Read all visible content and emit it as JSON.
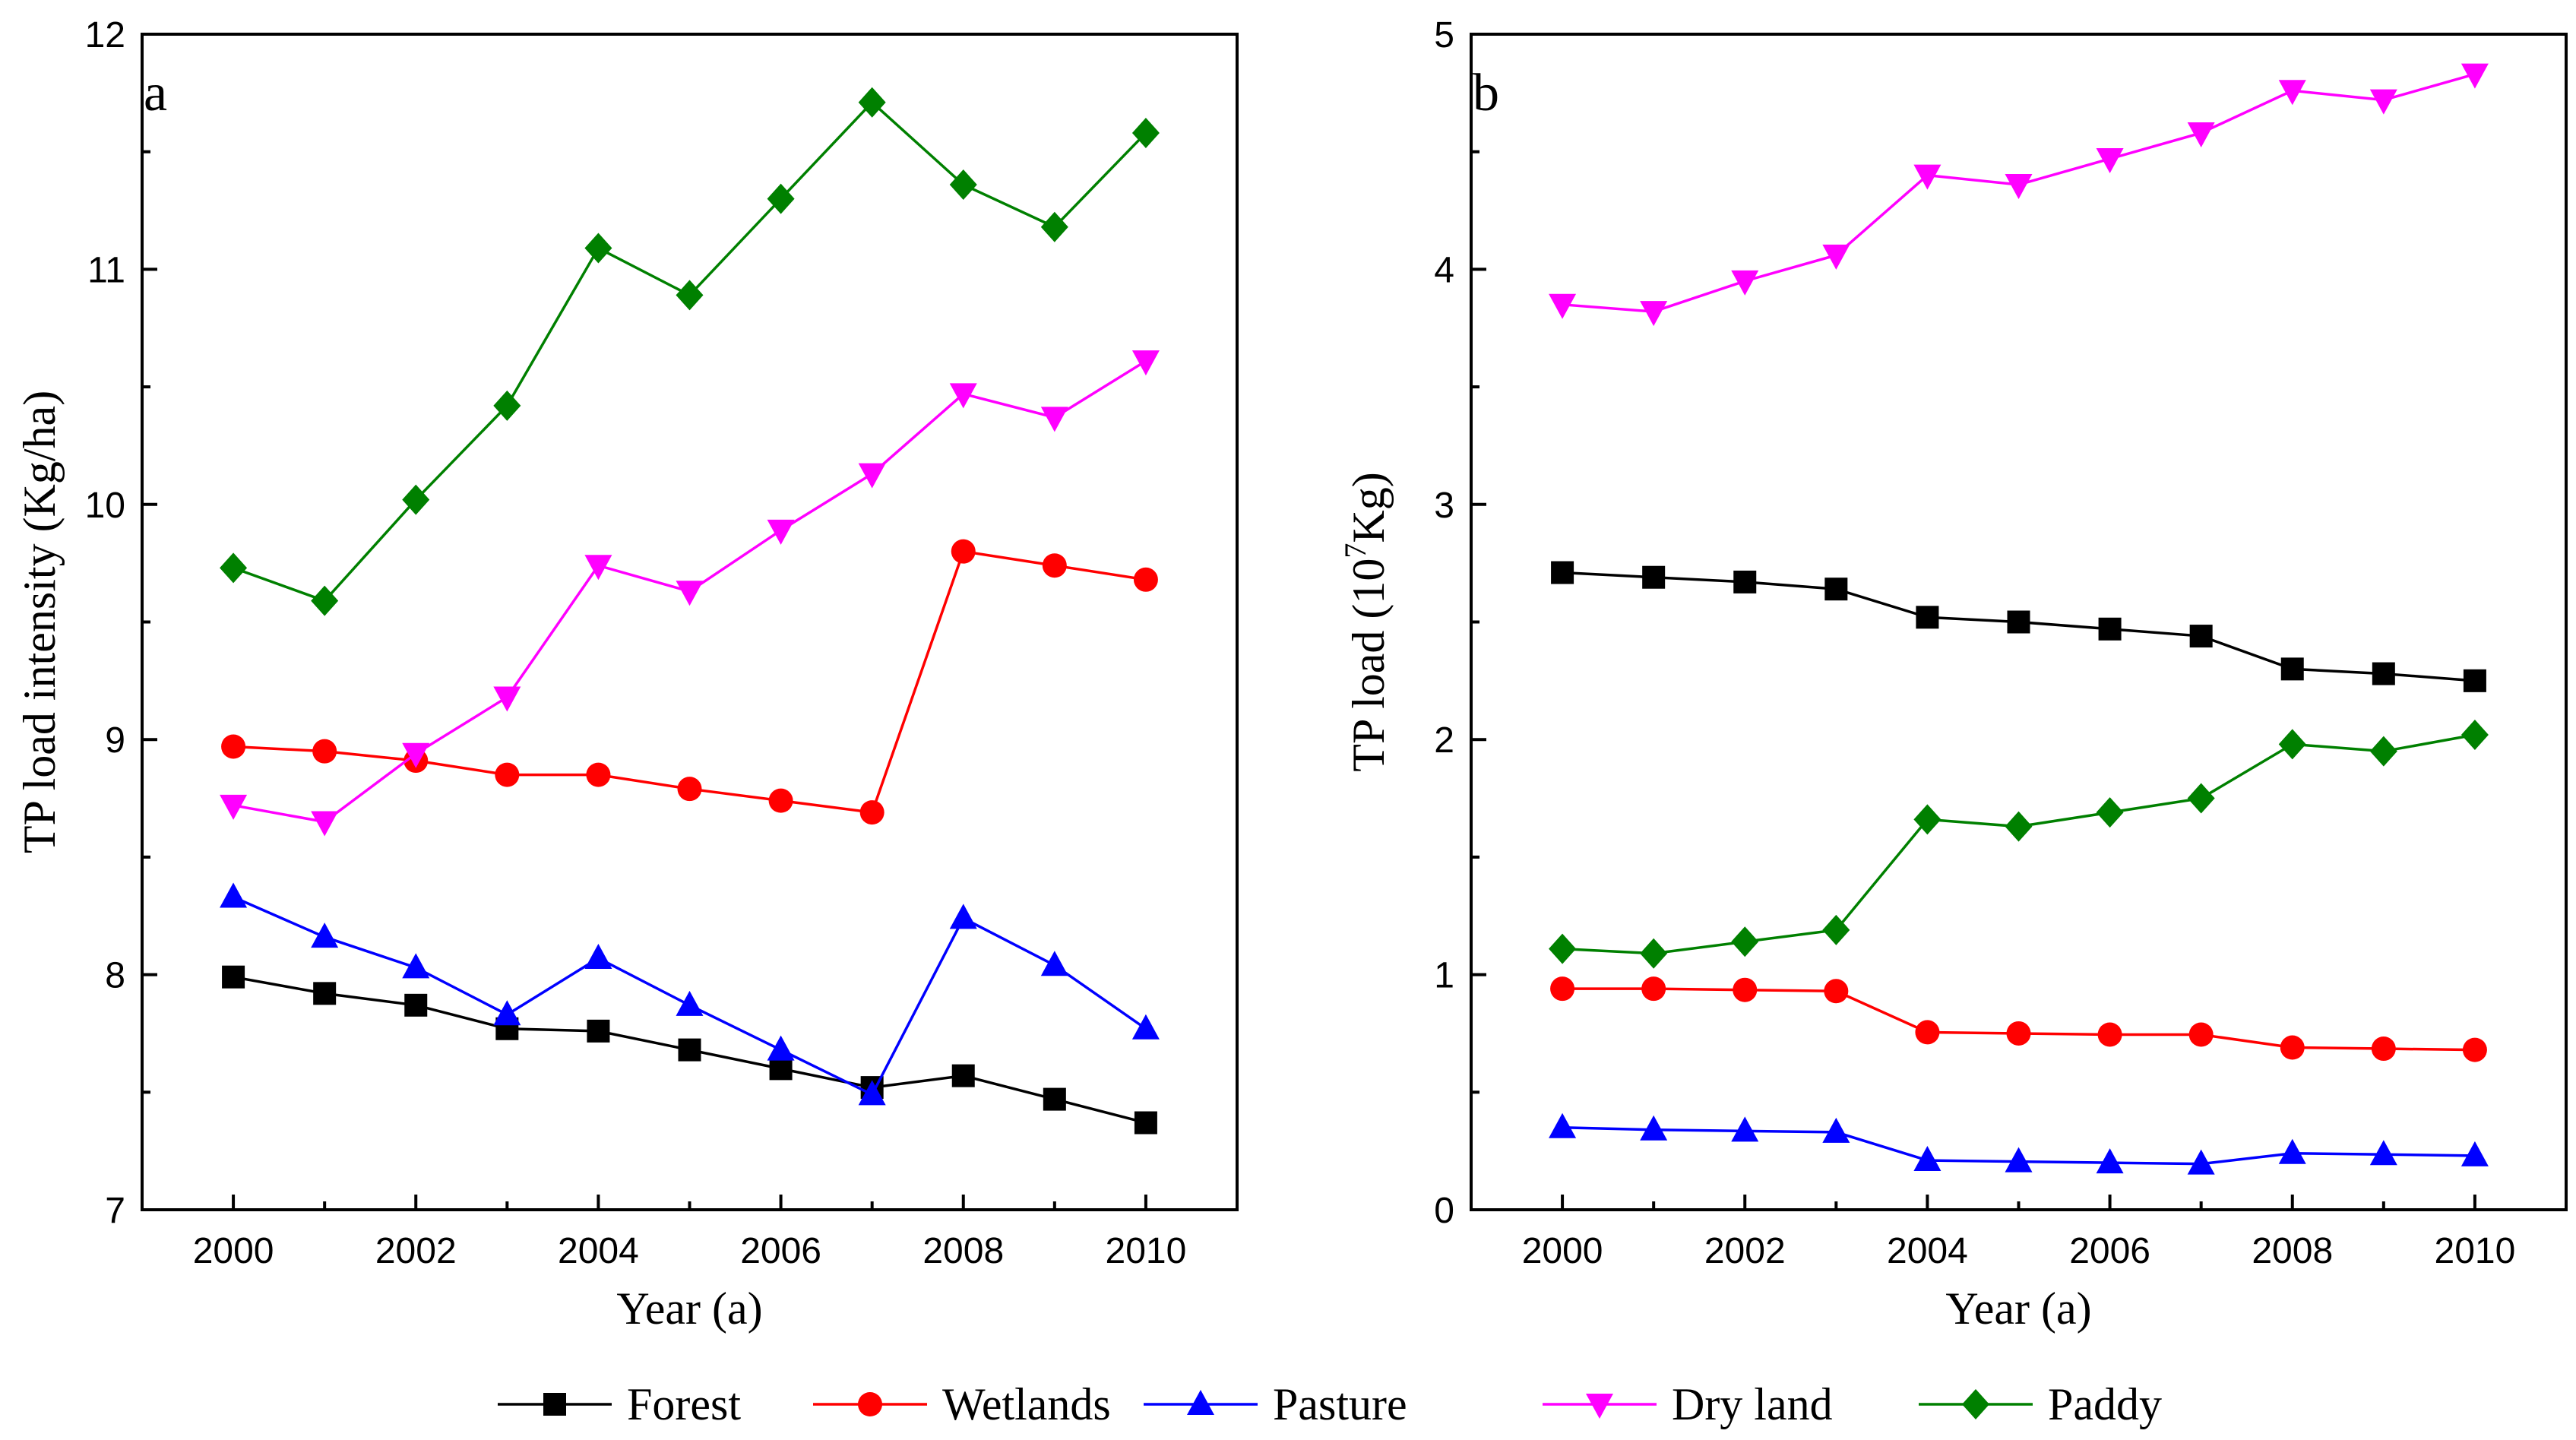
{
  "figure": {
    "legend": [
      {
        "name": "Forest",
        "color": "#000000",
        "marker": "square"
      },
      {
        "name": "Wetlands",
        "color": "#ff0000",
        "marker": "circle"
      },
      {
        "name": "Pasture",
        "color": "#0000ff",
        "marker": "triangle-up"
      },
      {
        "name": "Dry land",
        "color": "#ff00ff",
        "marker": "triangle-down"
      },
      {
        "name": "Paddy",
        "color": "#008000",
        "marker": "diamond"
      }
    ]
  },
  "chart_data": [
    {
      "type": "line",
      "panel": "a",
      "title": "",
      "xlabel": "Year (a)",
      "ylabel": "TP load intensity (Kg/ha)",
      "xlim": [
        1999,
        2011
      ],
      "ylim": [
        7,
        12
      ],
      "xticks": [
        "2000",
        "2002",
        "2004",
        "2006",
        "2008",
        "2010"
      ],
      "yticks": [
        "7",
        "8",
        "9",
        "10",
        "11",
        "12"
      ],
      "x": [
        2000,
        2001,
        2002,
        2003,
        2004,
        2005,
        2006,
        2007,
        2008,
        2009,
        2010
      ],
      "series": [
        {
          "name": "Forest",
          "values": [
            7.99,
            7.92,
            7.87,
            7.77,
            7.76,
            7.68,
            7.6,
            7.52,
            7.57,
            7.47,
            7.37
          ]
        },
        {
          "name": "Wetlands",
          "values": [
            8.97,
            8.95,
            8.91,
            8.85,
            8.85,
            8.79,
            8.74,
            8.69,
            9.8,
            9.74,
            9.68
          ]
        },
        {
          "name": "Pasture",
          "values": [
            8.33,
            8.16,
            8.03,
            7.83,
            8.07,
            7.87,
            7.68,
            7.49,
            8.24,
            8.04,
            7.77
          ]
        },
        {
          "name": "Dry land",
          "values": [
            8.72,
            8.65,
            8.94,
            9.18,
            9.74,
            9.63,
            9.89,
            10.13,
            10.47,
            10.37,
            10.61
          ]
        },
        {
          "name": "Paddy",
          "values": [
            9.73,
            9.59,
            10.02,
            10.42,
            11.09,
            10.89,
            11.3,
            11.71,
            11.36,
            11.18,
            11.58
          ]
        }
      ]
    },
    {
      "type": "line",
      "panel": "b",
      "title": "",
      "xlabel": "Year (a)",
      "ylabel_prefix": "TP load (10",
      "ylabel_exp": "7",
      "ylabel_suffix": "Kg)",
      "xlim": [
        1999,
        2011
      ],
      "ylim": [
        0,
        5
      ],
      "xticks": [
        "2000",
        "2002",
        "2004",
        "2006",
        "2008",
        "2010"
      ],
      "yticks": [
        "0",
        "1",
        "2",
        "3",
        "4",
        "5"
      ],
      "x": [
        2000,
        2001,
        2002,
        2003,
        2004,
        2005,
        2006,
        2007,
        2008,
        2009,
        2010
      ],
      "series": [
        {
          "name": "Forest",
          "values": [
            2.71,
            2.69,
            2.67,
            2.64,
            2.52,
            2.5,
            2.47,
            2.44,
            2.3,
            2.28,
            2.25
          ]
        },
        {
          "name": "Wetlands",
          "values": [
            0.94,
            0.94,
            0.935,
            0.93,
            0.755,
            0.75,
            0.745,
            0.745,
            0.69,
            0.685,
            0.68
          ]
        },
        {
          "name": "Pasture",
          "values": [
            0.35,
            0.34,
            0.335,
            0.33,
            0.21,
            0.205,
            0.2,
            0.195,
            0.24,
            0.235,
            0.23
          ]
        },
        {
          "name": "Dry land",
          "values": [
            3.85,
            3.82,
            3.95,
            4.06,
            4.4,
            4.36,
            4.47,
            4.58,
            4.76,
            4.72,
            4.83
          ]
        },
        {
          "name": "Paddy",
          "values": [
            1.11,
            1.09,
            1.14,
            1.19,
            1.66,
            1.63,
            1.69,
            1.75,
            1.98,
            1.95,
            2.02
          ]
        }
      ]
    }
  ]
}
